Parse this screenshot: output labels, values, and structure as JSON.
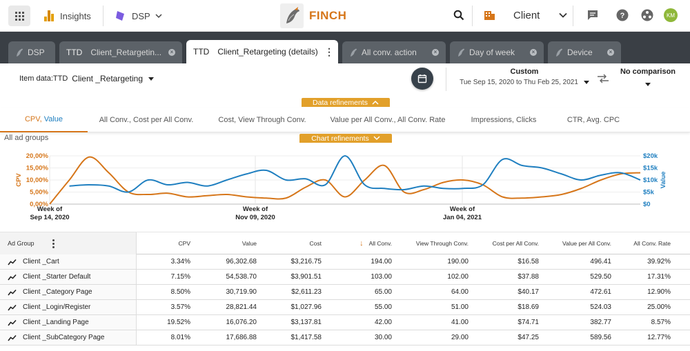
{
  "topbar": {
    "insights_label": "Insights",
    "dsp_label": "DSP",
    "brand_name": "FINCH",
    "client_label": "Client",
    "avatar_initials": "KM",
    "accent_color": "#d6761a"
  },
  "tabs": [
    {
      "prefix": "",
      "label": "DSP",
      "active": false
    },
    {
      "prefix": "TTD",
      "label": "Client_Retargetin...",
      "active": false
    },
    {
      "prefix": "TTD",
      "label": "Client_Retargeting (details)",
      "active": true
    },
    {
      "prefix": "",
      "label": "All conv. action",
      "active": false
    },
    {
      "prefix": "",
      "label": "Day of week",
      "active": false
    },
    {
      "prefix": "",
      "label": "Device",
      "active": false
    }
  ],
  "controls": {
    "item_data_label": "Item data:TTD",
    "item_data_value": "Client _Retargeting",
    "date_mode": "Custom",
    "date_range": "Tue Sep 15, 2020 to Thu Feb 25, 2021",
    "comparison": "No comparison",
    "data_refinements": "Data refinements",
    "chart_refinements": "Chart refinements"
  },
  "metric_tabs": [
    {
      "label_a": "CPV, ",
      "label_b": "Value",
      "active": true
    },
    {
      "label_a": "All Conv., Cost per All Conv.",
      "label_b": "",
      "active": false
    },
    {
      "label_a": "Cost, View Through Conv.",
      "label_b": "",
      "active": false
    },
    {
      "label_a": "Value per All Conv., All Conv. Rate",
      "label_b": "",
      "active": false
    },
    {
      "label_a": "Impressions, Clicks",
      "label_b": "",
      "active": false
    },
    {
      "label_a": "CTR, Avg. CPC",
      "label_b": "",
      "active": false
    }
  ],
  "chart_section_label": "All ad groups",
  "chart_data": {
    "type": "line",
    "title": "",
    "x_tick_labels": [
      "Week of\nSep 14, 2020",
      "Week of\nNov 09, 2020",
      "Week of\nJan 04, 2021"
    ],
    "series": [
      {
        "name": "CPV",
        "color": "#d6761a",
        "axis": "left",
        "ylabel": "CPV",
        "ylim": [
          0,
          20
        ],
        "ytick_labels": [
          "0,00%",
          "5,00%",
          "10,00%",
          "15,00%",
          "20,00%"
        ],
        "values": [
          0,
          10,
          19.5,
          13,
          5,
          4,
          4.5,
          3,
          3.5,
          4,
          3,
          2.5,
          2.5,
          7,
          10,
          3,
          10,
          16,
          5,
          6,
          9,
          10,
          8,
          3,
          2.5,
          3,
          4,
          6.5,
          10,
          12.5,
          13
        ]
      },
      {
        "name": "Value",
        "color": "#1f7fc0",
        "axis": "right",
        "ylabel": "Value",
        "ylim": [
          0,
          20000
        ],
        "ytick_labels": [
          "$0",
          "$5k",
          "$10k",
          "$15k",
          "$20k"
        ],
        "values": [
          null,
          7500,
          8000,
          7500,
          5000,
          10000,
          8000,
          9000,
          7500,
          10000,
          12500,
          14000,
          10000,
          10500,
          8000,
          20000,
          8000,
          6500,
          6000,
          7500,
          6500,
          6500,
          8000,
          18500,
          16000,
          15000,
          12500,
          10000,
          12000,
          13000,
          10000
        ]
      }
    ]
  },
  "table": {
    "first_header": "Ad Group",
    "headers": [
      "CPV",
      "Value",
      "Cost",
      "All Conv.",
      "View Through Conv.",
      "Cost per All Conv.",
      "Value per All Conv.",
      "All Conv. Rate"
    ],
    "rows": [
      {
        "name": "Client _Cart",
        "cells": [
          "3.34%",
          "96,302.68",
          "$3,216.75",
          "194.00",
          "190.00",
          "$16.58",
          "496.41",
          "39.92%"
        ]
      },
      {
        "name": "Client _Starter Default",
        "cells": [
          "7.15%",
          "54,538.70",
          "$3,901.51",
          "103.00",
          "102.00",
          "$37.88",
          "529.50",
          "17.31%"
        ]
      },
      {
        "name": "Client _Category Page",
        "cells": [
          "8.50%",
          "30,719.90",
          "$2,611.23",
          "65.00",
          "64.00",
          "$40.17",
          "472.61",
          "12.90%"
        ]
      },
      {
        "name": "Client _Login/Register",
        "cells": [
          "3.57%",
          "28,821.44",
          "$1,027.96",
          "55.00",
          "51.00",
          "$18.69",
          "524.03",
          "25.00%"
        ]
      },
      {
        "name": "Client _Landing Page",
        "cells": [
          "19.52%",
          "16,076.20",
          "$3,137.81",
          "42.00",
          "41.00",
          "$74.71",
          "382.77",
          "8.57%"
        ]
      },
      {
        "name": "Client _SubCategory Page",
        "cells": [
          "8.01%",
          "17,686.88",
          "$1,417.58",
          "30.00",
          "29.00",
          "$47.25",
          "589.56",
          "12.77%"
        ]
      }
    ]
  }
}
